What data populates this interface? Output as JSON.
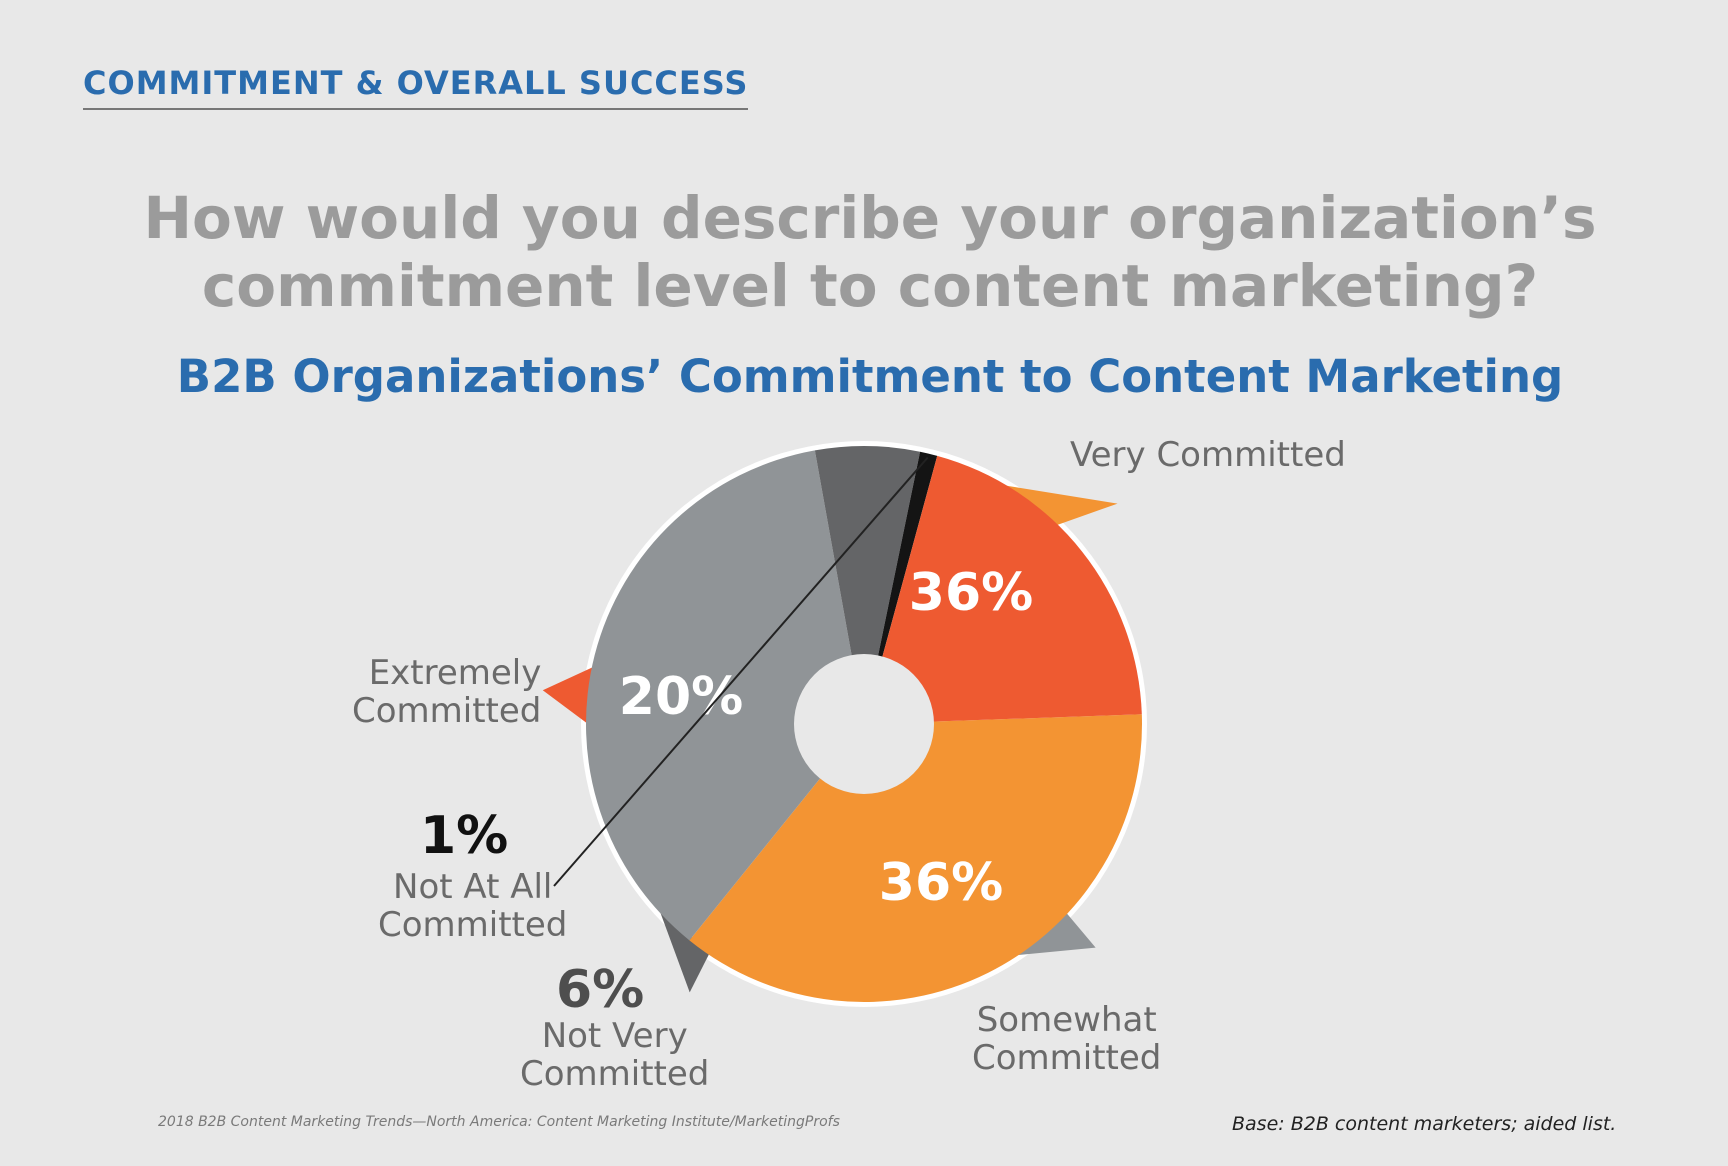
{
  "section_header": "COMMITMENT & OVERALL SUCCESS",
  "question": "How would you describe your organization’s commitment level to content marketing?",
  "chart_data": {
    "type": "pie",
    "title": "B2B Organizations’ Commitment to Content Marketing",
    "donut": true,
    "categories": [
      "Very Committed",
      "Somewhat Committed",
      "Not Very Committed",
      "Not At All Committed",
      "Extremely Committed"
    ],
    "values": [
      36,
      36,
      6,
      1,
      20
    ],
    "value_labels": [
      "36%",
      "36%",
      "6%",
      "1%",
      "20%"
    ],
    "colors": [
      "#f39433",
      "#909497",
      "#646567",
      "#141414",
      "#ee5a31"
    ]
  },
  "labels": {
    "very_committed": "Very Committed",
    "somewhat_line1": "Somewhat",
    "somewhat_line2": "Committed",
    "not_very_line1": "Not Very",
    "not_very_line2": "Committed",
    "not_at_all_line1": "Not At All",
    "not_at_all_line2": "Committed",
    "extremely_line1": "Extremely",
    "extremely_line2": "Committed"
  },
  "source_note": "2018 B2B Content Marketing Trends—North America: Content Marketing Institute/MarketingProfs",
  "base_note": "Base: B2B content marketers; aided list."
}
